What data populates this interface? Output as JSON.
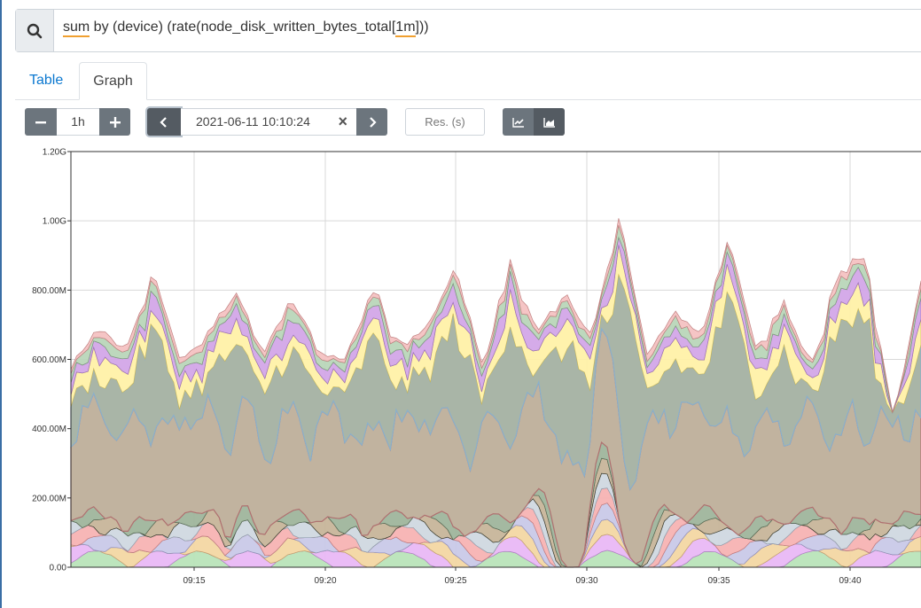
{
  "query": {
    "parts": [
      "sum",
      " by (device) (rate(node_disk_written_bytes_total[",
      "1m",
      "]))"
    ]
  },
  "tabs": [
    {
      "label": "Table",
      "active": false
    },
    {
      "label": "Graph",
      "active": true
    }
  ],
  "controls": {
    "range": "1h",
    "end_time": "2021-06-11 10:10:24",
    "resolution_placeholder": "Res. (s)",
    "stacked": true
  },
  "icons": {
    "search": "search-icon",
    "minus": "minus-icon",
    "plus": "plus-icon",
    "prev": "chevron-left-icon",
    "next": "chevron-right-icon",
    "clear": "close-icon",
    "line_chart": "line-chart-icon",
    "stacked_chart": "area-chart-icon"
  },
  "colors": {
    "tab_active_link": "#0b78d0",
    "button": "#6c757d",
    "button_active": "#545b62",
    "query_underline": "#f0a030"
  },
  "chart_data": {
    "type": "area",
    "stacked": true,
    "title": "",
    "xlabel": "",
    "ylabel": "",
    "y_tick_labels": [
      "0.00",
      "200.00M",
      "400.00M",
      "600.00M",
      "800.00M",
      "1.00G",
      "1.20G"
    ],
    "y_tick_values": [
      0,
      200000000,
      400000000,
      600000000,
      800000000,
      1000000000,
      1200000000
    ],
    "ylim": [
      0,
      1200000000
    ],
    "x_tick_labels": [
      "09:15",
      "09:20",
      "09:25",
      "09:30",
      "09:35",
      "09:40"
    ],
    "x_tick_values": [
      "09:15",
      "09:20",
      "09:25",
      "09:30",
      "09:35",
      "09:40"
    ],
    "x_range": [
      "09:10:24",
      "10:10:24"
    ],
    "grid": true,
    "totals_estimate_M": [
      600,
      720,
      650,
      880,
      620,
      700,
      820,
      640,
      810,
      650,
      620,
      840,
      660,
      720,
      900,
      610,
      920,
      700,
      820,
      690,
      1040,
      640,
      760,
      700,
      980,
      660,
      800,
      600,
      900,
      920,
      430,
      860
    ]
  }
}
